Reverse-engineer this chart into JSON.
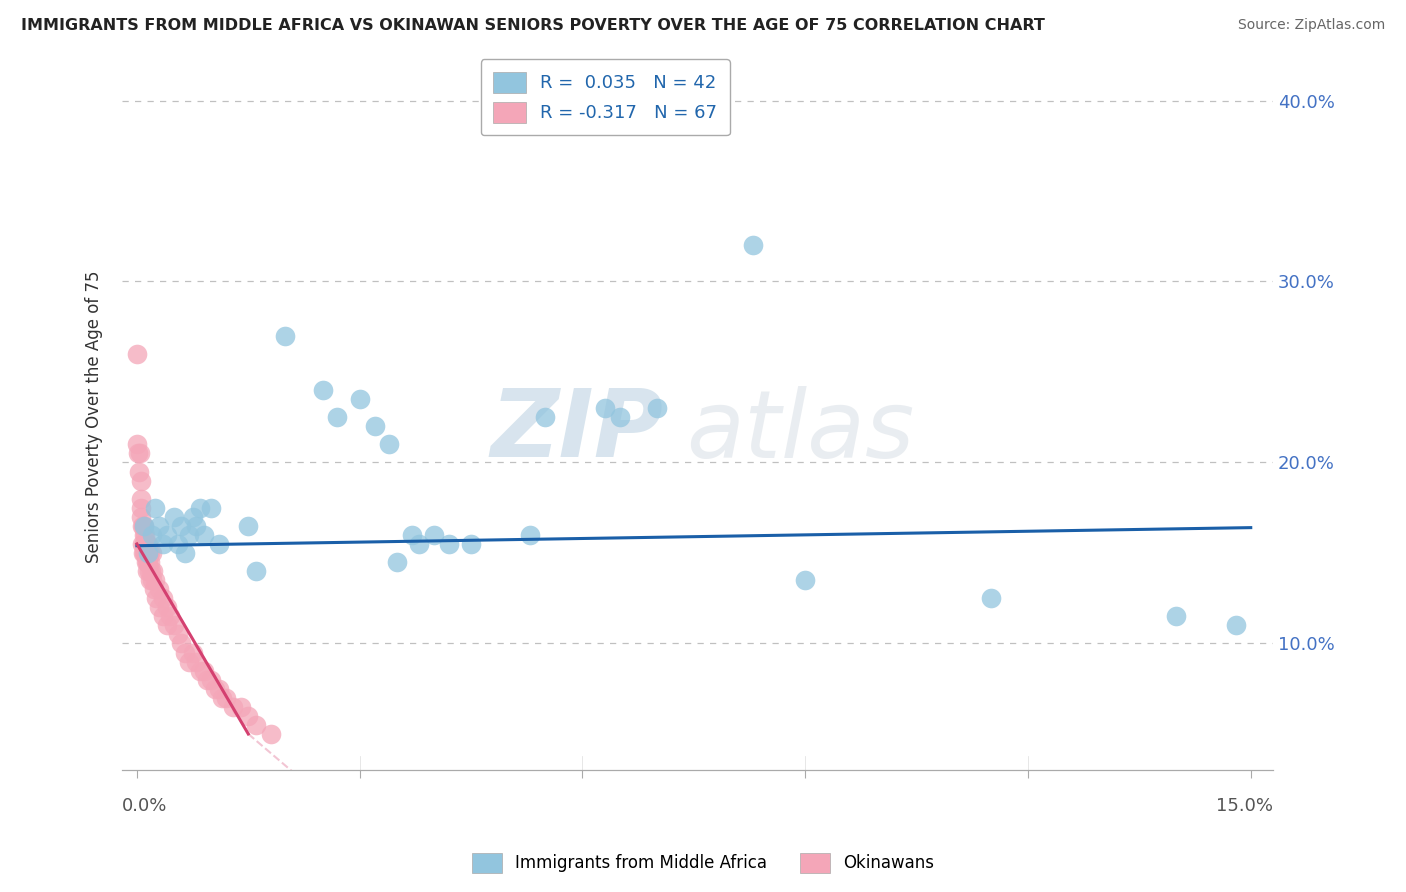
{
  "title": "IMMIGRANTS FROM MIDDLE AFRICA VS OKINAWAN SENIORS POVERTY OVER THE AGE OF 75 CORRELATION CHART",
  "source": "Source: ZipAtlas.com",
  "ylabel": "Seniors Poverty Over the Age of 75",
  "yticks": [
    10.0,
    20.0,
    30.0,
    40.0
  ],
  "ytick_labels": [
    "10.0%",
    "20.0%",
    "30.0%",
    "40.0%"
  ],
  "xmin": 0.0,
  "xmax": 15.0,
  "ymin": 3.0,
  "ymax": 42.0,
  "legend_blue": "R =  0.035   N = 42",
  "legend_pink": "R = -0.317   N = 67",
  "legend_label_blue": "Immigrants from Middle Africa",
  "legend_label_pink": "Okinawans",
  "blue_color": "#92c5de",
  "pink_color": "#f4a6b8",
  "blue_line_color": "#1a5fa8",
  "pink_line_color": "#d44070",
  "blue_scatter": [
    [
      0.1,
      16.5
    ],
    [
      0.15,
      15.0
    ],
    [
      0.2,
      16.0
    ],
    [
      0.25,
      17.5
    ],
    [
      0.3,
      16.5
    ],
    [
      0.35,
      15.5
    ],
    [
      0.4,
      16.0
    ],
    [
      0.5,
      17.0
    ],
    [
      0.55,
      15.5
    ],
    [
      0.6,
      16.5
    ],
    [
      0.65,
      15.0
    ],
    [
      0.7,
      16.0
    ],
    [
      0.75,
      17.0
    ],
    [
      0.8,
      16.5
    ],
    [
      0.85,
      17.5
    ],
    [
      0.9,
      16.0
    ],
    [
      1.0,
      17.5
    ],
    [
      1.1,
      15.5
    ],
    [
      1.5,
      16.5
    ],
    [
      1.6,
      14.0
    ],
    [
      2.0,
      27.0
    ],
    [
      2.5,
      24.0
    ],
    [
      2.7,
      22.5
    ],
    [
      3.0,
      23.5
    ],
    [
      3.2,
      22.0
    ],
    [
      3.4,
      21.0
    ],
    [
      3.5,
      14.5
    ],
    [
      3.7,
      16.0
    ],
    [
      3.8,
      15.5
    ],
    [
      4.0,
      16.0
    ],
    [
      4.2,
      15.5
    ],
    [
      4.5,
      15.5
    ],
    [
      5.3,
      16.0
    ],
    [
      5.5,
      22.5
    ],
    [
      6.3,
      23.0
    ],
    [
      6.5,
      22.5
    ],
    [
      7.0,
      23.0
    ],
    [
      8.3,
      32.0
    ],
    [
      9.0,
      13.5
    ],
    [
      11.5,
      12.5
    ],
    [
      14.0,
      11.5
    ],
    [
      14.8,
      11.0
    ]
  ],
  "pink_scatter": [
    [
      0.0,
      26.0
    ],
    [
      0.0,
      21.0
    ],
    [
      0.02,
      20.5
    ],
    [
      0.03,
      19.5
    ],
    [
      0.04,
      20.5
    ],
    [
      0.05,
      19.0
    ],
    [
      0.05,
      17.5
    ],
    [
      0.06,
      18.0
    ],
    [
      0.06,
      17.0
    ],
    [
      0.07,
      16.5
    ],
    [
      0.07,
      15.5
    ],
    [
      0.08,
      16.5
    ],
    [
      0.08,
      15.0
    ],
    [
      0.09,
      16.0
    ],
    [
      0.09,
      15.5
    ],
    [
      0.1,
      16.5
    ],
    [
      0.1,
      15.5
    ],
    [
      0.1,
      15.0
    ],
    [
      0.11,
      16.0
    ],
    [
      0.11,
      15.0
    ],
    [
      0.12,
      15.5
    ],
    [
      0.12,
      14.5
    ],
    [
      0.13,
      15.5
    ],
    [
      0.13,
      14.5
    ],
    [
      0.14,
      15.0
    ],
    [
      0.14,
      14.0
    ],
    [
      0.15,
      15.5
    ],
    [
      0.15,
      14.5
    ],
    [
      0.16,
      15.0
    ],
    [
      0.16,
      14.0
    ],
    [
      0.17,
      15.0
    ],
    [
      0.17,
      13.5
    ],
    [
      0.18,
      14.5
    ],
    [
      0.19,
      14.0
    ],
    [
      0.2,
      15.0
    ],
    [
      0.2,
      13.5
    ],
    [
      0.22,
      14.0
    ],
    [
      0.23,
      13.0
    ],
    [
      0.25,
      13.5
    ],
    [
      0.26,
      12.5
    ],
    [
      0.3,
      13.0
    ],
    [
      0.3,
      12.0
    ],
    [
      0.35,
      12.5
    ],
    [
      0.35,
      11.5
    ],
    [
      0.4,
      12.0
    ],
    [
      0.4,
      11.0
    ],
    [
      0.45,
      11.5
    ],
    [
      0.5,
      11.0
    ],
    [
      0.55,
      10.5
    ],
    [
      0.6,
      10.0
    ],
    [
      0.65,
      9.5
    ],
    [
      0.7,
      9.0
    ],
    [
      0.75,
      9.5
    ],
    [
      0.8,
      9.0
    ],
    [
      0.85,
      8.5
    ],
    [
      0.9,
      8.5
    ],
    [
      0.95,
      8.0
    ],
    [
      1.0,
      8.0
    ],
    [
      1.05,
      7.5
    ],
    [
      1.1,
      7.5
    ],
    [
      1.15,
      7.0
    ],
    [
      1.2,
      7.0
    ],
    [
      1.3,
      6.5
    ],
    [
      1.4,
      6.5
    ],
    [
      1.5,
      6.0
    ],
    [
      1.6,
      5.5
    ],
    [
      1.8,
      5.0
    ]
  ],
  "watermark_zip": "ZIP",
  "watermark_atlas": "atlas",
  "grid_color": "#cccccc",
  "dotted_line_color": "#c0c0c0"
}
